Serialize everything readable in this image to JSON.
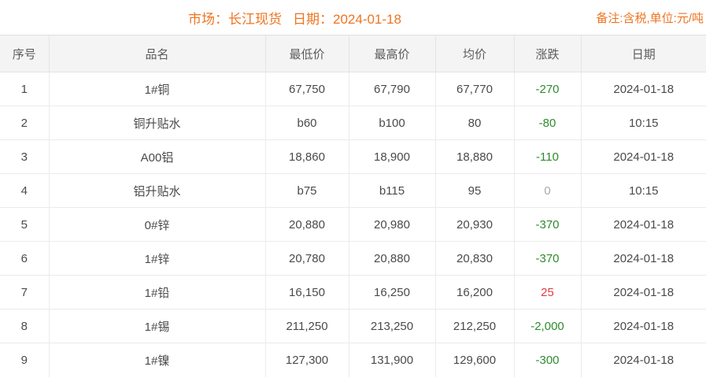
{
  "topbar": {
    "market_label": "市场：长江现货",
    "date_label": "日期：2024-01-18",
    "remark": "备注:含税,单位:元/吨"
  },
  "table": {
    "columns": [
      "序号",
      "品名",
      "最低价",
      "最高价",
      "均价",
      "涨跌",
      "日期"
    ],
    "rows": [
      {
        "no": "1",
        "name": "1#铜",
        "low": "67,750",
        "high": "67,790",
        "avg": "67,770",
        "change": "-270",
        "trend": "down",
        "date": "2024-01-18"
      },
      {
        "no": "2",
        "name": "铜升贴水",
        "low": "b60",
        "high": "b100",
        "avg": "80",
        "change": "-80",
        "trend": "down",
        "date": "10:15"
      },
      {
        "no": "3",
        "name": "A00铝",
        "low": "18,860",
        "high": "18,900",
        "avg": "18,880",
        "change": "-110",
        "trend": "down",
        "date": "2024-01-18"
      },
      {
        "no": "4",
        "name": "铝升贴水",
        "low": "b75",
        "high": "b115",
        "avg": "95",
        "change": "0",
        "trend": "flat",
        "date": "10:15"
      },
      {
        "no": "5",
        "name": "0#锌",
        "low": "20,880",
        "high": "20,980",
        "avg": "20,930",
        "change": "-370",
        "trend": "down",
        "date": "2024-01-18"
      },
      {
        "no": "6",
        "name": "1#锌",
        "low": "20,780",
        "high": "20,880",
        "avg": "20,830",
        "change": "-370",
        "trend": "down",
        "date": "2024-01-18"
      },
      {
        "no": "7",
        "name": "1#铅",
        "low": "16,150",
        "high": "16,250",
        "avg": "16,200",
        "change": "25",
        "trend": "up",
        "date": "2024-01-18"
      },
      {
        "no": "8",
        "name": "1#锡",
        "low": "211,250",
        "high": "213,250",
        "avg": "212,250",
        "change": "-2,000",
        "trend": "down",
        "date": "2024-01-18"
      },
      {
        "no": "9",
        "name": "1#镍",
        "low": "127,300",
        "high": "131,900",
        "avg": "129,600",
        "change": "-300",
        "trend": "down",
        "date": "2024-01-18"
      }
    ]
  },
  "colors": {
    "accent_orange": "#ee7420",
    "change_negative_green": "#2e8b2e",
    "change_positive_red": "#e23b43",
    "change_zero_gray": "#aaaaaa"
  }
}
